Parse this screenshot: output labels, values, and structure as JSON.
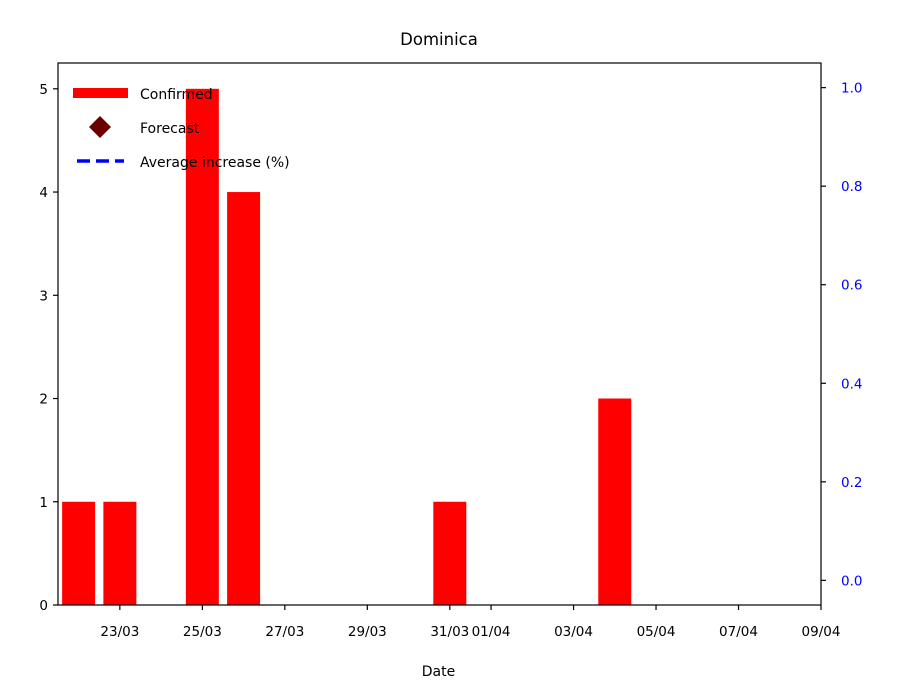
{
  "chart_data": {
    "type": "bar",
    "title": "Dominica",
    "xlabel": "Date",
    "ylabel": "",
    "y2label": "",
    "ylim": [
      0,
      5.25
    ],
    "y2lim": [
      -0.05,
      1.05
    ],
    "x_start": "22/03",
    "x_end": "09/04",
    "xticks": [
      "23/03",
      "25/03",
      "27/03",
      "29/03",
      "31/03",
      "01/04",
      "03/04",
      "05/04",
      "07/04",
      "09/04"
    ],
    "yticks": [
      0,
      1,
      2,
      3,
      4,
      5
    ],
    "y2ticks": [
      "0.0",
      "0.2",
      "0.4",
      "0.6",
      "0.8",
      "1.0"
    ],
    "grid": false,
    "legend_position": "top-left",
    "series": [
      {
        "name": "Confirmed",
        "kind": "bar",
        "color": "#ff0000",
        "points": [
          {
            "date": "22/03",
            "value": 1
          },
          {
            "date": "23/03",
            "value": 1
          },
          {
            "date": "25/03",
            "value": 5
          },
          {
            "date": "26/03",
            "value": 4
          },
          {
            "date": "31/03",
            "value": 1
          },
          {
            "date": "04/04",
            "value": 2
          }
        ]
      },
      {
        "name": "Forecast",
        "kind": "marker",
        "marker": "diamond",
        "color": "#6b0000",
        "points": []
      },
      {
        "name": "Average increase (%)",
        "kind": "line",
        "linestyle": "dashed",
        "color": "#0000ff",
        "axis": "right",
        "points": []
      }
    ],
    "right_axis_color": "#0000ff"
  }
}
